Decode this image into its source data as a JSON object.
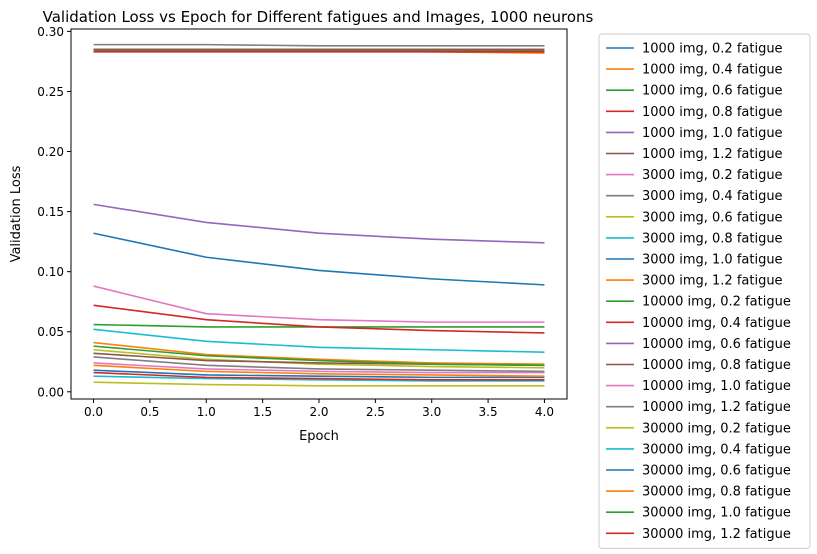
{
  "chart_data": {
    "type": "line",
    "title": "Validation Loss vs Epoch for Different fatigues and Images, 1000 neurons",
    "xlabel": "Epoch",
    "ylabel": "Validation Loss",
    "xlim": [
      -0.2,
      4.2
    ],
    "ylim": [
      -0.006,
      0.302
    ],
    "xticks": [
      0.0,
      0.5,
      1.0,
      1.5,
      2.0,
      2.5,
      3.0,
      3.5,
      4.0
    ],
    "xtick_labels": [
      "0.0",
      "0.5",
      "1.0",
      "1.5",
      "2.0",
      "2.5",
      "3.0",
      "3.5",
      "4.0"
    ],
    "yticks": [
      0.0,
      0.05,
      0.1,
      0.15,
      0.2,
      0.25,
      0.3
    ],
    "ytick_labels": [
      "0.00",
      "0.05",
      "0.10",
      "0.15",
      "0.20",
      "0.25",
      "0.30"
    ],
    "grid": false,
    "legend_position": "outside-right",
    "x": [
      0,
      1,
      2,
      3,
      4
    ],
    "series": [
      {
        "name": "1000 img, 0.2 fatigue",
        "color": "#1f77b4",
        "values": [
          0.284,
          0.284,
          0.284,
          0.284,
          0.284
        ]
      },
      {
        "name": "1000 img, 0.4 fatigue",
        "color": "#ff7f0e",
        "values": [
          0.285,
          0.284,
          0.284,
          0.283,
          0.282
        ]
      },
      {
        "name": "1000 img, 0.6 fatigue",
        "color": "#2ca02c",
        "values": [
          0.284,
          0.284,
          0.284,
          0.284,
          0.284
        ]
      },
      {
        "name": "1000 img, 0.8 fatigue",
        "color": "#d62728",
        "values": [
          0.283,
          0.283,
          0.283,
          0.283,
          0.283
        ]
      },
      {
        "name": "1000 img, 1.0 fatigue",
        "color": "#9467bd",
        "values": [
          0.285,
          0.285,
          0.285,
          0.285,
          0.285
        ]
      },
      {
        "name": "1000 img, 1.2 fatigue",
        "color": "#8c564b",
        "values": [
          0.285,
          0.285,
          0.285,
          0.285,
          0.285
        ]
      },
      {
        "name": "3000 img, 0.2 fatigue",
        "color": "#e377c2",
        "values": [
          0.024,
          0.019,
          0.017,
          0.016,
          0.016
        ]
      },
      {
        "name": "3000 img, 0.4 fatigue",
        "color": "#7f7f7f",
        "values": [
          0.289,
          0.289,
          0.288,
          0.288,
          0.288
        ]
      },
      {
        "name": "3000 img, 0.6 fatigue",
        "color": "#bcbd22",
        "values": [
          0.035,
          0.027,
          0.023,
          0.021,
          0.02
        ]
      },
      {
        "name": "3000 img, 0.8 fatigue",
        "color": "#17becf",
        "values": [
          0.013,
          0.011,
          0.01,
          0.009,
          0.009
        ]
      },
      {
        "name": "3000 img, 1.0 fatigue",
        "color": "#1f77b4",
        "values": [
          0.132,
          0.112,
          0.101,
          0.094,
          0.089
        ]
      },
      {
        "name": "3000 img, 1.2 fatigue",
        "color": "#ff7f0e",
        "values": [
          0.041,
          0.031,
          0.027,
          0.024,
          0.023
        ]
      },
      {
        "name": "10000 img, 0.2 fatigue",
        "color": "#2ca02c",
        "values": [
          0.056,
          0.054,
          0.054,
          0.054,
          0.054
        ]
      },
      {
        "name": "10000 img, 0.4 fatigue",
        "color": "#d62728",
        "values": [
          0.072,
          0.06,
          0.054,
          0.051,
          0.049
        ]
      },
      {
        "name": "10000 img, 0.6 fatigue",
        "color": "#9467bd",
        "values": [
          0.156,
          0.141,
          0.132,
          0.127,
          0.124
        ]
      },
      {
        "name": "10000 img, 0.8 fatigue",
        "color": "#8c564b",
        "values": [
          0.032,
          0.026,
          0.024,
          0.023,
          0.022
        ]
      },
      {
        "name": "10000 img, 1.0 fatigue",
        "color": "#e377c2",
        "values": [
          0.088,
          0.065,
          0.06,
          0.058,
          0.058
        ]
      },
      {
        "name": "10000 img, 1.2 fatigue",
        "color": "#7f7f7f",
        "values": [
          0.029,
          0.022,
          0.019,
          0.018,
          0.017
        ]
      },
      {
        "name": "30000 img, 0.2 fatigue",
        "color": "#bcbd22",
        "values": [
          0.008,
          0.006,
          0.005,
          0.005,
          0.005
        ]
      },
      {
        "name": "30000 img, 0.4 fatigue",
        "color": "#17becf",
        "values": [
          0.052,
          0.042,
          0.037,
          0.035,
          0.033
        ]
      },
      {
        "name": "30000 img, 0.6 fatigue",
        "color": "#1f77b4",
        "values": [
          0.018,
          0.014,
          0.013,
          0.012,
          0.012
        ]
      },
      {
        "name": "30000 img, 0.8 fatigue",
        "color": "#ff7f0e",
        "values": [
          0.022,
          0.017,
          0.015,
          0.014,
          0.013
        ]
      },
      {
        "name": "30000 img, 1.0 fatigue",
        "color": "#2ca02c",
        "values": [
          0.038,
          0.03,
          0.026,
          0.023,
          0.022
        ]
      },
      {
        "name": "30000 img, 1.2 fatigue",
        "color": "#d62728",
        "values": [
          0.016,
          0.012,
          0.011,
          0.01,
          0.01
        ]
      }
    ]
  }
}
